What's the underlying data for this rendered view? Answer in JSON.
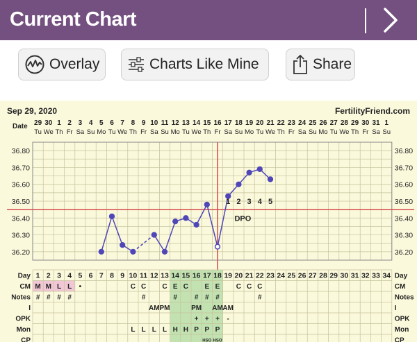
{
  "header": {
    "title": "Current Chart"
  },
  "toolbar": {
    "overlay_label": "Overlay",
    "charts_like_mine_label": "Charts Like Mine",
    "share_label": "Share"
  },
  "chart_data": {
    "type": "line",
    "title": "",
    "date_label": "Sep 29, 2020",
    "site": "FertilityFriend.com",
    "ylim": [
      36.15,
      36.85
    ],
    "y_ticks": [
      "36.80",
      "36.70",
      "36.60",
      "36.50",
      "36.40",
      "36.30",
      "36.20"
    ],
    "dates": [
      "29",
      "30",
      "1",
      "2",
      "3",
      "4",
      "5",
      "6",
      "7",
      "8",
      "9",
      "10",
      "11",
      "12",
      "13",
      "14",
      "15",
      "16",
      "17",
      "18",
      "19",
      "20",
      "21",
      "22",
      "23",
      "24",
      "25",
      "26",
      "27",
      "28",
      "29",
      "30",
      "31",
      "1"
    ],
    "weekdays": [
      "Tu",
      "We",
      "Th",
      "Fr",
      "Sa",
      "Su",
      "Mo",
      "Tu",
      "We",
      "Th",
      "Fr",
      "Sa",
      "Su",
      "Mo",
      "Tu",
      "We",
      "Th",
      "Fr",
      "Sa",
      "Su",
      "Mo",
      "Tu",
      "We",
      "Th",
      "Fr",
      "Sa",
      "Su",
      "Mo",
      "Tu",
      "We",
      "Th",
      "Fr",
      "Sa",
      "Su"
    ],
    "cycle_days": [
      1,
      2,
      3,
      4,
      5,
      6,
      7,
      8,
      9,
      10,
      11,
      12,
      13,
      14,
      15,
      16,
      17,
      18,
      19,
      20,
      21,
      22,
      23,
      24,
      25,
      26,
      27,
      28,
      29,
      30,
      31,
      32,
      33,
      34
    ],
    "x_label": "Day",
    "temperatures": [
      {
        "day": 7,
        "temp": 36.2
      },
      {
        "day": 8,
        "temp": 36.41
      },
      {
        "day": 9,
        "temp": 36.24
      },
      {
        "day": 10,
        "temp": 36.2
      },
      {
        "day": 12,
        "temp": 36.3
      },
      {
        "day": 13,
        "temp": 36.2
      },
      {
        "day": 14,
        "temp": 36.38
      },
      {
        "day": 15,
        "temp": 36.4
      },
      {
        "day": 16,
        "temp": 36.36
      },
      {
        "day": 17,
        "temp": 36.48
      },
      {
        "day": 18,
        "temp": 36.23
      },
      {
        "day": 19,
        "temp": 36.53
      },
      {
        "day": 20,
        "temp": 36.6
      },
      {
        "day": 21,
        "temp": 36.67
      },
      {
        "day": 22,
        "temp": 36.69
      },
      {
        "day": 23,
        "temp": 36.63
      }
    ],
    "dashed_segments": [
      [
        10,
        12
      ]
    ],
    "open_points": [
      18
    ],
    "coverline": 36.45,
    "ovulation_day": 18,
    "dpo_numbers": [
      "1",
      "2",
      "3",
      "4",
      "5"
    ],
    "dpo_label": "DPO",
    "rows": [
      {
        "label": "CM",
        "cells": {
          "1": "M",
          "2": "M",
          "3": "L",
          "4": "L",
          "5": "•",
          "10": "C",
          "11": "C",
          "13": "C",
          "14": "E",
          "15": "C",
          "17": "E",
          "18": "E",
          "20": "C",
          "21": "C",
          "22": "C"
        }
      },
      {
        "label": "Notes",
        "cells": {
          "1": "#",
          "2": "#",
          "3": "#",
          "4": "#",
          "11": "#",
          "14": "#",
          "16": "#",
          "17": "#",
          "18": "#",
          "22": "#"
        }
      },
      {
        "label": "I",
        "cells": {
          "12": "AM",
          "13": "PM",
          "16": "PM",
          "18": "AM",
          "19": "AM"
        }
      },
      {
        "label": "OPK",
        "cells": {
          "16": "+",
          "17": "+",
          "18": "+",
          "19": "-"
        }
      },
      {
        "label": "Mon",
        "cells": {
          "10": "L",
          "11": "L",
          "12": "L",
          "13": "L",
          "14": "H",
          "15": "H",
          "16": "P",
          "17": "P",
          "18": "P"
        }
      },
      {
        "label": "CP",
        "cells": {
          "17": "HSO",
          "18": "HSO"
        }
      }
    ],
    "colors": {
      "header": "#73507f",
      "line": "#4f46b8",
      "coverline": "#d24a4a",
      "grid": "#c4c29a",
      "plot_bg": "#fbf9dc",
      "menses": "#f1c7d6",
      "fertile": "#c3e2b2",
      "text": "#222222"
    }
  }
}
